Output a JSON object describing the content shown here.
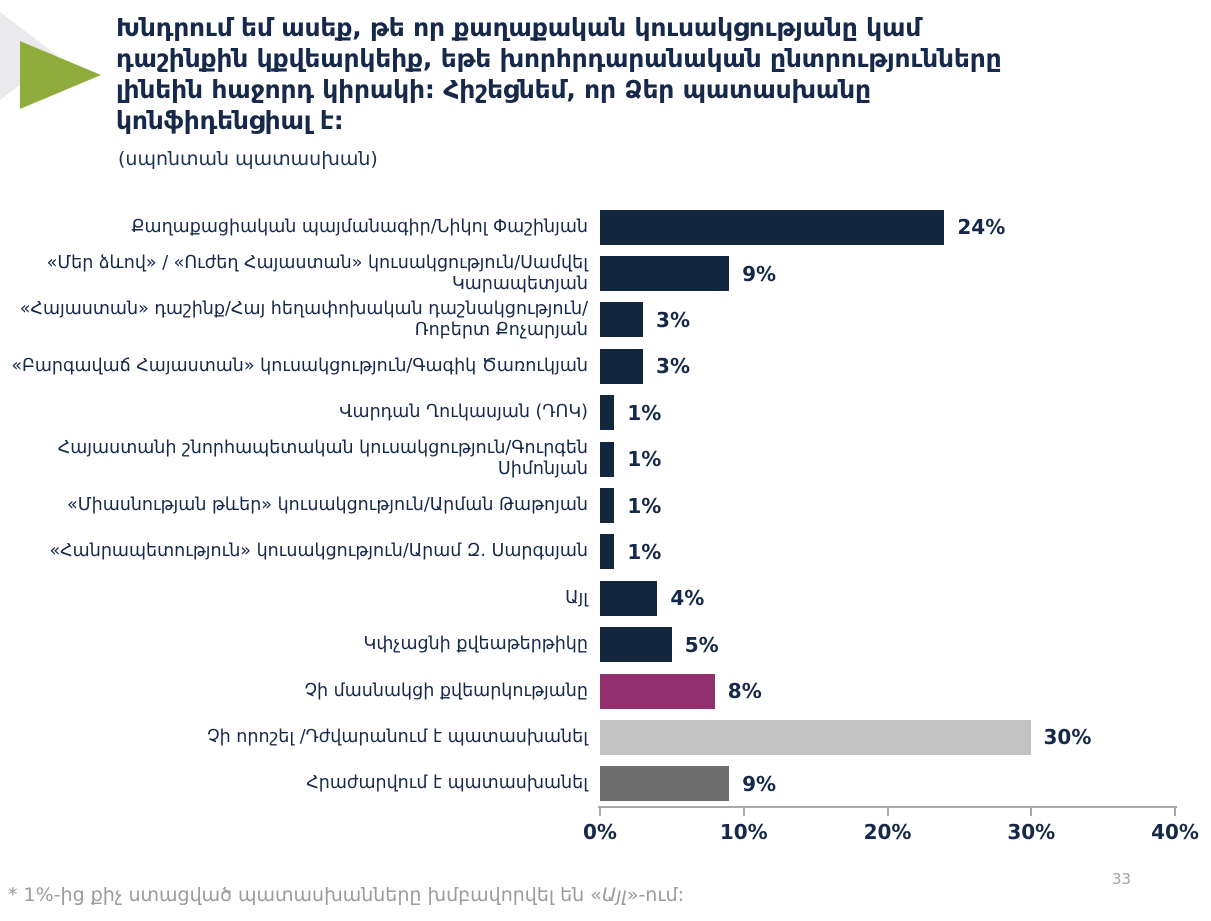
{
  "header": {
    "title_lines": [
      "Խնդրում եմ ասեք, թե որ քաղաքական կուսակցությանը կամ",
      "դաշինքին կքվեարկեիք, եթե խորհրդարանական ընտրությունները",
      "լինեին հաջորդ կիրակի: Հիշեցնեմ, որ Ձեր պատասխանը",
      "կոնֆիդենցիալ է:"
    ],
    "subtitle": "(սպոնտան պատասխան)"
  },
  "colors": {
    "navy": "#12263E",
    "magenta": "#92306F",
    "light_gray": "#C2C2C2",
    "dark_gray": "#6E6E6E",
    "accent_green": "#8FAD3C",
    "decor_gray": "#EAEAED",
    "axis_gray": "#A9A9A9"
  },
  "chart_data": {
    "type": "bar",
    "orientation": "horizontal",
    "title": "Խնդրում եմ ասեք, թե որ քաղաքական կուսակցությանը կամ դաշինքին կքվեարկեիք, եթե խորհրդարանական ընտրությունները լինեին հաջորդ կիրակի: Հիշեցնեմ, որ Ձեր պատասխանը կոնֆիդենցիալ է:",
    "subtitle": "(սպոնտան պատասխան)",
    "xlim": [
      0,
      40
    ],
    "x_ticks": [
      "0%",
      "10%",
      "20%",
      "30%",
      "40%"
    ],
    "grid": false,
    "legend": "none",
    "rows": [
      {
        "label": "Քաղաքացիական պայմանագիր/Նիկոլ Փաշինյան",
        "value": 24,
        "value_label": "24%",
        "color": "#12263E"
      },
      {
        "label": "«Մեր ձևով» / «Ուժեղ Հայաստան» կուսակցություն/Սամվել Կարապետյան",
        "value": 9,
        "value_label": "9%",
        "color": "#12263E"
      },
      {
        "label": "«Հայաստան» դաշինք/Հայ հեղափոխական դաշնակցություն/Ռոբերտ Քոչարյան",
        "value": 3,
        "value_label": "3%",
        "color": "#12263E"
      },
      {
        "label": "«Բարգավաճ Հայաստան» կուսակցություն/Գագիկ Ծառուկյան",
        "value": 3,
        "value_label": "3%",
        "color": "#12263E"
      },
      {
        "label": "Վարդան Ղուկասյան (ԴՈԿ)",
        "value": 1,
        "value_label": "1%",
        "color": "#12263E"
      },
      {
        "label": "Հայաստանի շնորհապետական կուսակցություն/Գուրգեն Սիմոնյան",
        "value": 1,
        "value_label": "1%",
        "color": "#12263E"
      },
      {
        "label": "«Միասնության թևեր» կուսակցություն/Արման Թաթոյան",
        "value": 1,
        "value_label": "1%",
        "color": "#12263E"
      },
      {
        "label": "«Հանրապետություն» կուսակցություն/Արամ Զ. Սարգսյան",
        "value": 1,
        "value_label": "1%",
        "color": "#12263E"
      },
      {
        "label": "Այլ",
        "value": 4,
        "value_label": "4%",
        "color": "#12263E"
      },
      {
        "label": "Կփչացնի քվեաթերթիկը",
        "value": 5,
        "value_label": "5%",
        "color": "#12263E"
      },
      {
        "label": "Չի մասնակցի քվեարկությանը",
        "value": 8,
        "value_label": "8%",
        "color": "#92306F"
      },
      {
        "label": "Չի որոշել /Դժվարանում է պատասխանել",
        "value": 30,
        "value_label": "30%",
        "color": "#C2C2C2"
      },
      {
        "label": "Հրաժարվում է պատասխանել",
        "value": 9,
        "value_label": "9%",
        "color": "#6E6E6E"
      }
    ]
  },
  "footnote": {
    "prefix": "* 1%-ից քիչ ստացված պատասխանները խմբավորվել են «",
    "italic": "Այլ",
    "suffix": "»-ում:"
  },
  "page_number": "33"
}
